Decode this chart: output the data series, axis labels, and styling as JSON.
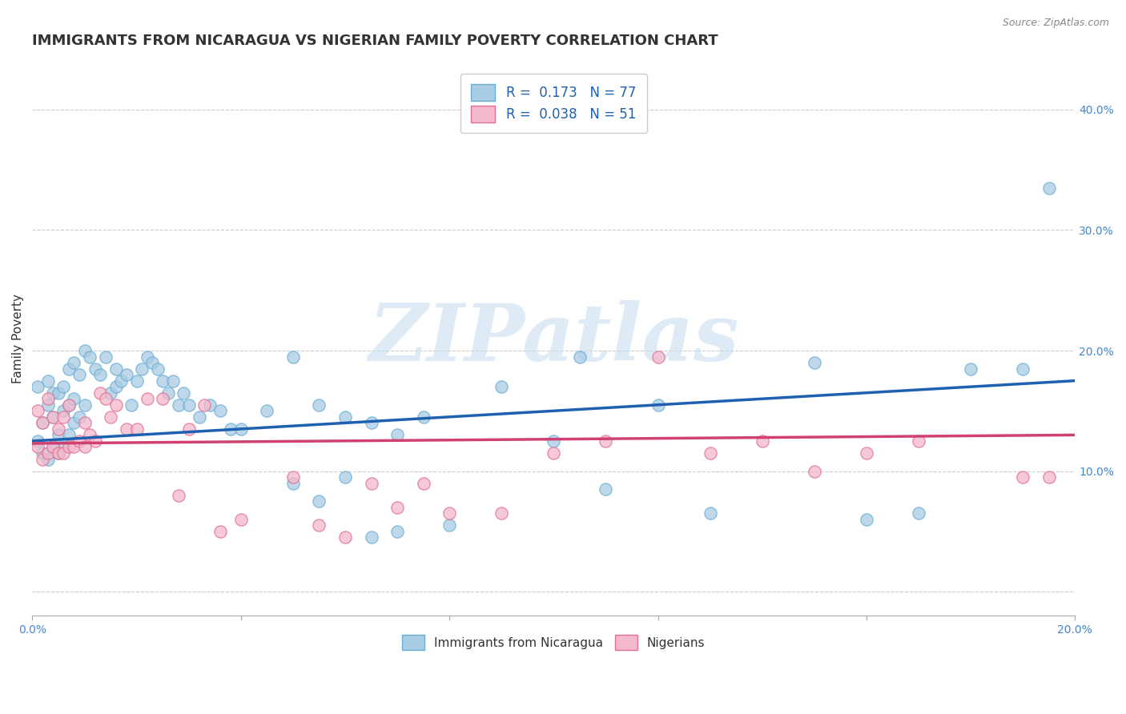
{
  "title": "IMMIGRANTS FROM NICARAGUA VS NIGERIAN FAMILY POVERTY CORRELATION CHART",
  "source": "Source: ZipAtlas.com",
  "ylabel": "Family Poverty",
  "xlim": [
    0.0,
    0.2
  ],
  "ylim": [
    -0.02,
    0.44
  ],
  "x_ticks": [
    0.0,
    0.04,
    0.08,
    0.12,
    0.16,
    0.2
  ],
  "x_tick_labels": [
    "0.0%",
    "",
    "",
    "",
    "",
    "20.0%"
  ],
  "y_ticks": [
    0.0,
    0.1,
    0.2,
    0.3,
    0.4
  ],
  "y_tick_labels": [
    "",
    "10.0%",
    "20.0%",
    "30.0%",
    "40.0%"
  ],
  "legend_blue_label": "R =  0.173   N = 77",
  "legend_pink_label": "R =  0.038   N = 51",
  "blue_color": "#a8cce4",
  "pink_color": "#f4b8cc",
  "blue_edge_color": "#6aaed6",
  "pink_edge_color": "#e07090",
  "blue_line_color": "#2060b0",
  "pink_line_color": "#d04070",
  "watermark_color": "#c8dff0",
  "blue_scatter_x": [
    0.001,
    0.001,
    0.002,
    0.002,
    0.003,
    0.003,
    0.003,
    0.004,
    0.004,
    0.004,
    0.005,
    0.005,
    0.005,
    0.006,
    0.006,
    0.006,
    0.007,
    0.007,
    0.007,
    0.008,
    0.008,
    0.008,
    0.009,
    0.009,
    0.01,
    0.01,
    0.011,
    0.012,
    0.013,
    0.014,
    0.015,
    0.016,
    0.016,
    0.017,
    0.018,
    0.019,
    0.02,
    0.021,
    0.022,
    0.023,
    0.024,
    0.025,
    0.026,
    0.027,
    0.028,
    0.029,
    0.03,
    0.032,
    0.034,
    0.036,
    0.038,
    0.04,
    0.045,
    0.05,
    0.055,
    0.06,
    0.065,
    0.07,
    0.075,
    0.08,
    0.09,
    0.1,
    0.105,
    0.11,
    0.12,
    0.13,
    0.15,
    0.16,
    0.17,
    0.18,
    0.19,
    0.195,
    0.05,
    0.055,
    0.06,
    0.065,
    0.07
  ],
  "blue_scatter_y": [
    0.125,
    0.17,
    0.115,
    0.14,
    0.11,
    0.155,
    0.175,
    0.12,
    0.145,
    0.165,
    0.115,
    0.13,
    0.165,
    0.12,
    0.15,
    0.17,
    0.13,
    0.155,
    0.185,
    0.14,
    0.16,
    0.19,
    0.145,
    0.18,
    0.155,
    0.2,
    0.195,
    0.185,
    0.18,
    0.195,
    0.165,
    0.17,
    0.185,
    0.175,
    0.18,
    0.155,
    0.175,
    0.185,
    0.195,
    0.19,
    0.185,
    0.175,
    0.165,
    0.175,
    0.155,
    0.165,
    0.155,
    0.145,
    0.155,
    0.15,
    0.135,
    0.135,
    0.15,
    0.195,
    0.155,
    0.145,
    0.14,
    0.13,
    0.145,
    0.055,
    0.17,
    0.125,
    0.195,
    0.085,
    0.155,
    0.065,
    0.19,
    0.06,
    0.065,
    0.185,
    0.185,
    0.335,
    0.09,
    0.075,
    0.095,
    0.045,
    0.05
  ],
  "pink_scatter_x": [
    0.001,
    0.001,
    0.002,
    0.002,
    0.003,
    0.003,
    0.004,
    0.004,
    0.005,
    0.005,
    0.006,
    0.006,
    0.007,
    0.007,
    0.008,
    0.009,
    0.01,
    0.01,
    0.011,
    0.012,
    0.013,
    0.014,
    0.015,
    0.016,
    0.018,
    0.02,
    0.022,
    0.025,
    0.028,
    0.03,
    0.033,
    0.036,
    0.04,
    0.05,
    0.055,
    0.06,
    0.065,
    0.07,
    0.075,
    0.08,
    0.09,
    0.1,
    0.11,
    0.12,
    0.13,
    0.14,
    0.15,
    0.16,
    0.17,
    0.19,
    0.195
  ],
  "pink_scatter_y": [
    0.12,
    0.15,
    0.11,
    0.14,
    0.115,
    0.16,
    0.12,
    0.145,
    0.115,
    0.135,
    0.115,
    0.145,
    0.12,
    0.155,
    0.12,
    0.125,
    0.12,
    0.14,
    0.13,
    0.125,
    0.165,
    0.16,
    0.145,
    0.155,
    0.135,
    0.135,
    0.16,
    0.16,
    0.08,
    0.135,
    0.155,
    0.05,
    0.06,
    0.095,
    0.055,
    0.045,
    0.09,
    0.07,
    0.09,
    0.065,
    0.065,
    0.115,
    0.125,
    0.195,
    0.115,
    0.125,
    0.1,
    0.115,
    0.125,
    0.095,
    0.095
  ],
  "blue_line_x": [
    0.0,
    0.2
  ],
  "blue_line_y": [
    0.125,
    0.175
  ],
  "pink_line_x": [
    0.0,
    0.2
  ],
  "pink_line_y": [
    0.123,
    0.13
  ],
  "title_fontsize": 13,
  "axis_label_fontsize": 11,
  "tick_fontsize": 10,
  "background_color": "#ffffff",
  "grid_color": "#cccccc"
}
